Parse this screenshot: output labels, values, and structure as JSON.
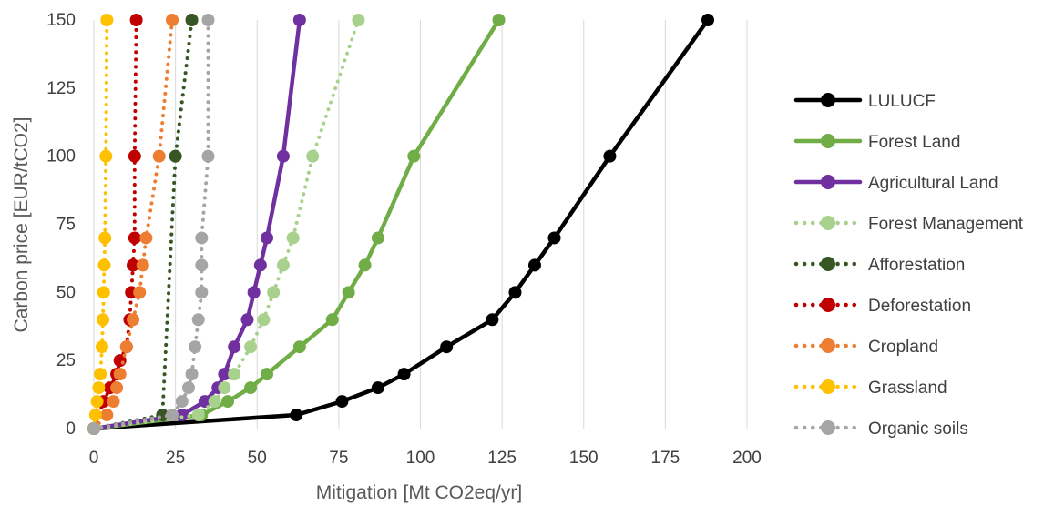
{
  "chart_data": {
    "type": "scatter",
    "xlabel": "Mitigation [Mt CO2eq/yr]",
    "ylabel": "Carbon price [EUR/tCO2]",
    "xlim": [
      0,
      200
    ],
    "ylim": [
      0,
      150
    ],
    "xticks": [
      0,
      25,
      50,
      75,
      100,
      125,
      150,
      175,
      200
    ],
    "yticks": [
      0,
      25,
      50,
      75,
      100,
      125,
      150
    ],
    "grid": "vertical",
    "legend_position": "right",
    "series": [
      {
        "name": "LULUCF",
        "color": "#000000",
        "style": "solid",
        "x": [
          0,
          62,
          76,
          87,
          95,
          108,
          122,
          129,
          135,
          141,
          158,
          188
        ],
        "y": [
          0,
          5,
          10,
          15,
          20,
          30,
          40,
          50,
          60,
          70,
          100,
          150
        ]
      },
      {
        "name": "Forest Land",
        "color": "#70AD47",
        "style": "solid",
        "x": [
          0,
          33,
          41,
          48,
          53,
          63,
          73,
          78,
          83,
          87,
          98,
          124
        ],
        "y": [
          0,
          5,
          10,
          15,
          20,
          30,
          40,
          50,
          60,
          70,
          100,
          150
        ]
      },
      {
        "name": "Agricultural Land",
        "color": "#7030A0",
        "style": "solid",
        "x": [
          0,
          27,
          34,
          38,
          40,
          43,
          47,
          49,
          51,
          53,
          58,
          63
        ],
        "y": [
          0,
          5,
          10,
          15,
          20,
          30,
          40,
          50,
          60,
          70,
          100,
          150
        ]
      },
      {
        "name": "Forest Management",
        "color": "#A9D18E",
        "style": "dotted",
        "x": [
          0,
          32,
          37,
          40,
          43,
          48,
          52,
          55,
          58,
          61,
          67,
          81
        ],
        "y": [
          0,
          5,
          10,
          15,
          20,
          30,
          40,
          50,
          60,
          70,
          100,
          150
        ]
      },
      {
        "name": "Afforestation",
        "color": "#375623",
        "style": "dotted",
        "x": [
          0,
          21,
          25,
          30
        ],
        "y": [
          0,
          5,
          100,
          150
        ]
      },
      {
        "name": "Deforestation",
        "color": "#C00000",
        "style": "dotted",
        "x": [
          0,
          3,
          5,
          7,
          8,
          10,
          11,
          11.5,
          12,
          12.5,
          12.5,
          13
        ],
        "y": [
          0,
          10,
          15,
          20,
          25,
          30,
          40,
          50,
          60,
          70,
          100,
          150
        ]
      },
      {
        "name": "Cropland",
        "color": "#ED7D31",
        "style": "dotted",
        "x": [
          0,
          4,
          6,
          7,
          8,
          10,
          12,
          14,
          15,
          16,
          20,
          24
        ],
        "y": [
          0,
          5,
          10,
          15,
          20,
          30,
          40,
          50,
          60,
          70,
          100,
          150
        ]
      },
      {
        "name": "Grassland",
        "color": "#FFC000",
        "style": "dotted",
        "x": [
          0,
          0.5,
          1,
          1.5,
          2,
          2.5,
          2.8,
          3,
          3.2,
          3.4,
          3.7,
          4
        ],
        "y": [
          0,
          5,
          10,
          15,
          20,
          30,
          40,
          50,
          60,
          70,
          100,
          150
        ]
      },
      {
        "name": "Organic soils",
        "color": "#A5A5A5",
        "style": "dotted",
        "x": [
          0,
          24,
          27,
          29,
          30,
          31,
          32,
          33,
          33,
          33,
          35,
          35
        ],
        "y": [
          0,
          5,
          10,
          15,
          20,
          30,
          40,
          50,
          60,
          70,
          100,
          150
        ]
      }
    ]
  }
}
